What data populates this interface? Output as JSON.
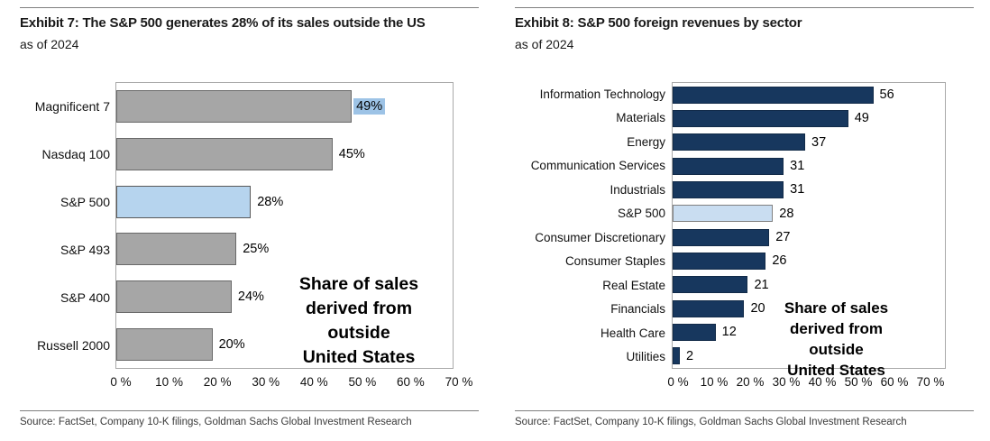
{
  "chart_data": [
    {
      "type": "bar",
      "orientation": "horizontal",
      "title": "Exhibit 7: The S&P 500 generates 28% of its sales outside the US",
      "subtitle": "as of 2024",
      "categories": [
        "Magnificent 7",
        "Nasdaq 100",
        "S&P 500",
        "S&P 493",
        "S&P 400",
        "Russell 2000"
      ],
      "values": [
        49,
        45,
        28,
        25,
        24,
        20
      ],
      "value_labels": [
        "49%",
        "45%",
        "28%",
        "25%",
        "24%",
        "20%"
      ],
      "highlight_category": "S&P 500",
      "value_label_highlighted": "Magnificent 7",
      "x_tick_labels": [
        "0 %",
        "10 %",
        "20 %",
        "30 %",
        "40 %",
        "50 %",
        "60 %",
        "70 %"
      ],
      "axis_max": 70,
      "grid": false,
      "legend": false,
      "annotation_lines": [
        "Share of sales",
        "derived from",
        "outside",
        "United States"
      ],
      "colors": {
        "bar_fill": "#A6A6A6",
        "bar_border": "#696969",
        "highlight_fill": "#B6D4EE",
        "highlight_border": "#595959",
        "value_label_highlight_bg": "#9DC3E6"
      },
      "source": "Source: FactSet, Company 10-K filings, Goldman Sachs Global Investment Research"
    },
    {
      "type": "bar",
      "orientation": "horizontal",
      "title": "Exhibit 8: S&P 500 foreign revenues by sector",
      "subtitle": "as of 2024",
      "categories": [
        "Information Technology",
        "Materials",
        "Energy",
        "Communication Services",
        "Industrials",
        "S&P 500",
        "Consumer Discretionary",
        "Consumer Staples",
        "Real Estate",
        "Financials",
        "Health Care",
        "Utilities"
      ],
      "values": [
        56,
        49,
        37,
        31,
        31,
        28,
        27,
        26,
        21,
        20,
        12,
        2
      ],
      "value_labels": [
        "56",
        "49",
        "37",
        "31",
        "31",
        "28",
        "27",
        "26",
        "21",
        "20",
        "12",
        "2"
      ],
      "highlight_category": "S&P 500",
      "value_label_highlighted": null,
      "x_tick_labels": [
        "0 %",
        "10 %",
        "20 %",
        "30 %",
        "40 %",
        "50 %",
        "60 %",
        "70 %"
      ],
      "axis_max": 76,
      "grid": false,
      "legend": false,
      "annotation_lines": [
        "Share of sales",
        "derived from",
        "outside",
        "United States"
      ],
      "colors": {
        "bar_fill": "#17375E",
        "bar_border": "#122B49",
        "highlight_fill": "#C9DDF1",
        "highlight_border": "#808080",
        "value_label_highlight_bg": "#9DC3E6"
      },
      "source": "Source: FactSet, Company 10-K filings, Goldman Sachs Global Investment Research"
    }
  ]
}
